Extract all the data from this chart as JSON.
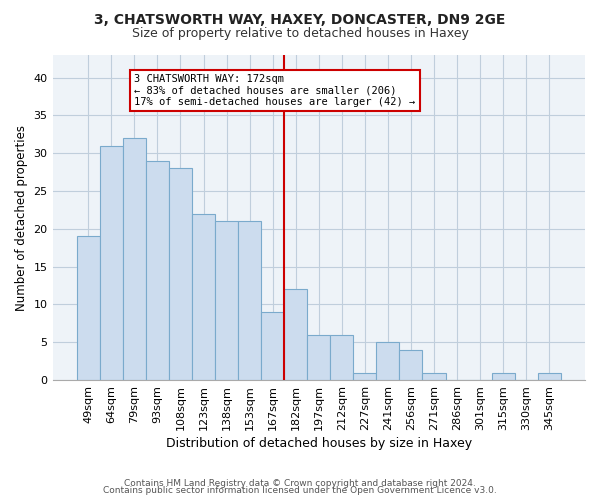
{
  "title1": "3, CHATSWORTH WAY, HAXEY, DONCASTER, DN9 2GE",
  "title2": "Size of property relative to detached houses in Haxey",
  "xlabel": "Distribution of detached houses by size in Haxey",
  "ylabel": "Number of detached properties",
  "bar_labels": [
    "49sqm",
    "64sqm",
    "79sqm",
    "93sqm",
    "108sqm",
    "123sqm",
    "138sqm",
    "153sqm",
    "167sqm",
    "182sqm",
    "197sqm",
    "212sqm",
    "227sqm",
    "241sqm",
    "256sqm",
    "271sqm",
    "286sqm",
    "301sqm",
    "315sqm",
    "330sqm",
    "345sqm"
  ],
  "bar_values": [
    19,
    31,
    32,
    29,
    28,
    22,
    21,
    21,
    9,
    12,
    6,
    6,
    1,
    5,
    4,
    1,
    0,
    0,
    1,
    0,
    1
  ],
  "bar_color": "#ccdcee",
  "bar_edge_color": "#7aaacc",
  "property_line_label": "3 CHATSWORTH WAY: 172sqm",
  "annotation_line1": "← 83% of detached houses are smaller (206)",
  "annotation_line2": "17% of semi-detached houses are larger (42) →",
  "annotation_box_color": "#ffffff",
  "annotation_box_edge": "#cc0000",
  "vline_color": "#cc0000",
  "vline_x_index": 8,
  "ylim": [
    0,
    43
  ],
  "yticks": [
    0,
    5,
    10,
    15,
    20,
    25,
    30,
    35,
    40
  ],
  "footer1": "Contains HM Land Registry data © Crown copyright and database right 2024.",
  "footer2": "Contains public sector information licensed under the Open Government Licence v3.0.",
  "bg_color": "#ffffff",
  "plot_bg_color": "#eef3f8",
  "grid_color": "#c0cedc"
}
